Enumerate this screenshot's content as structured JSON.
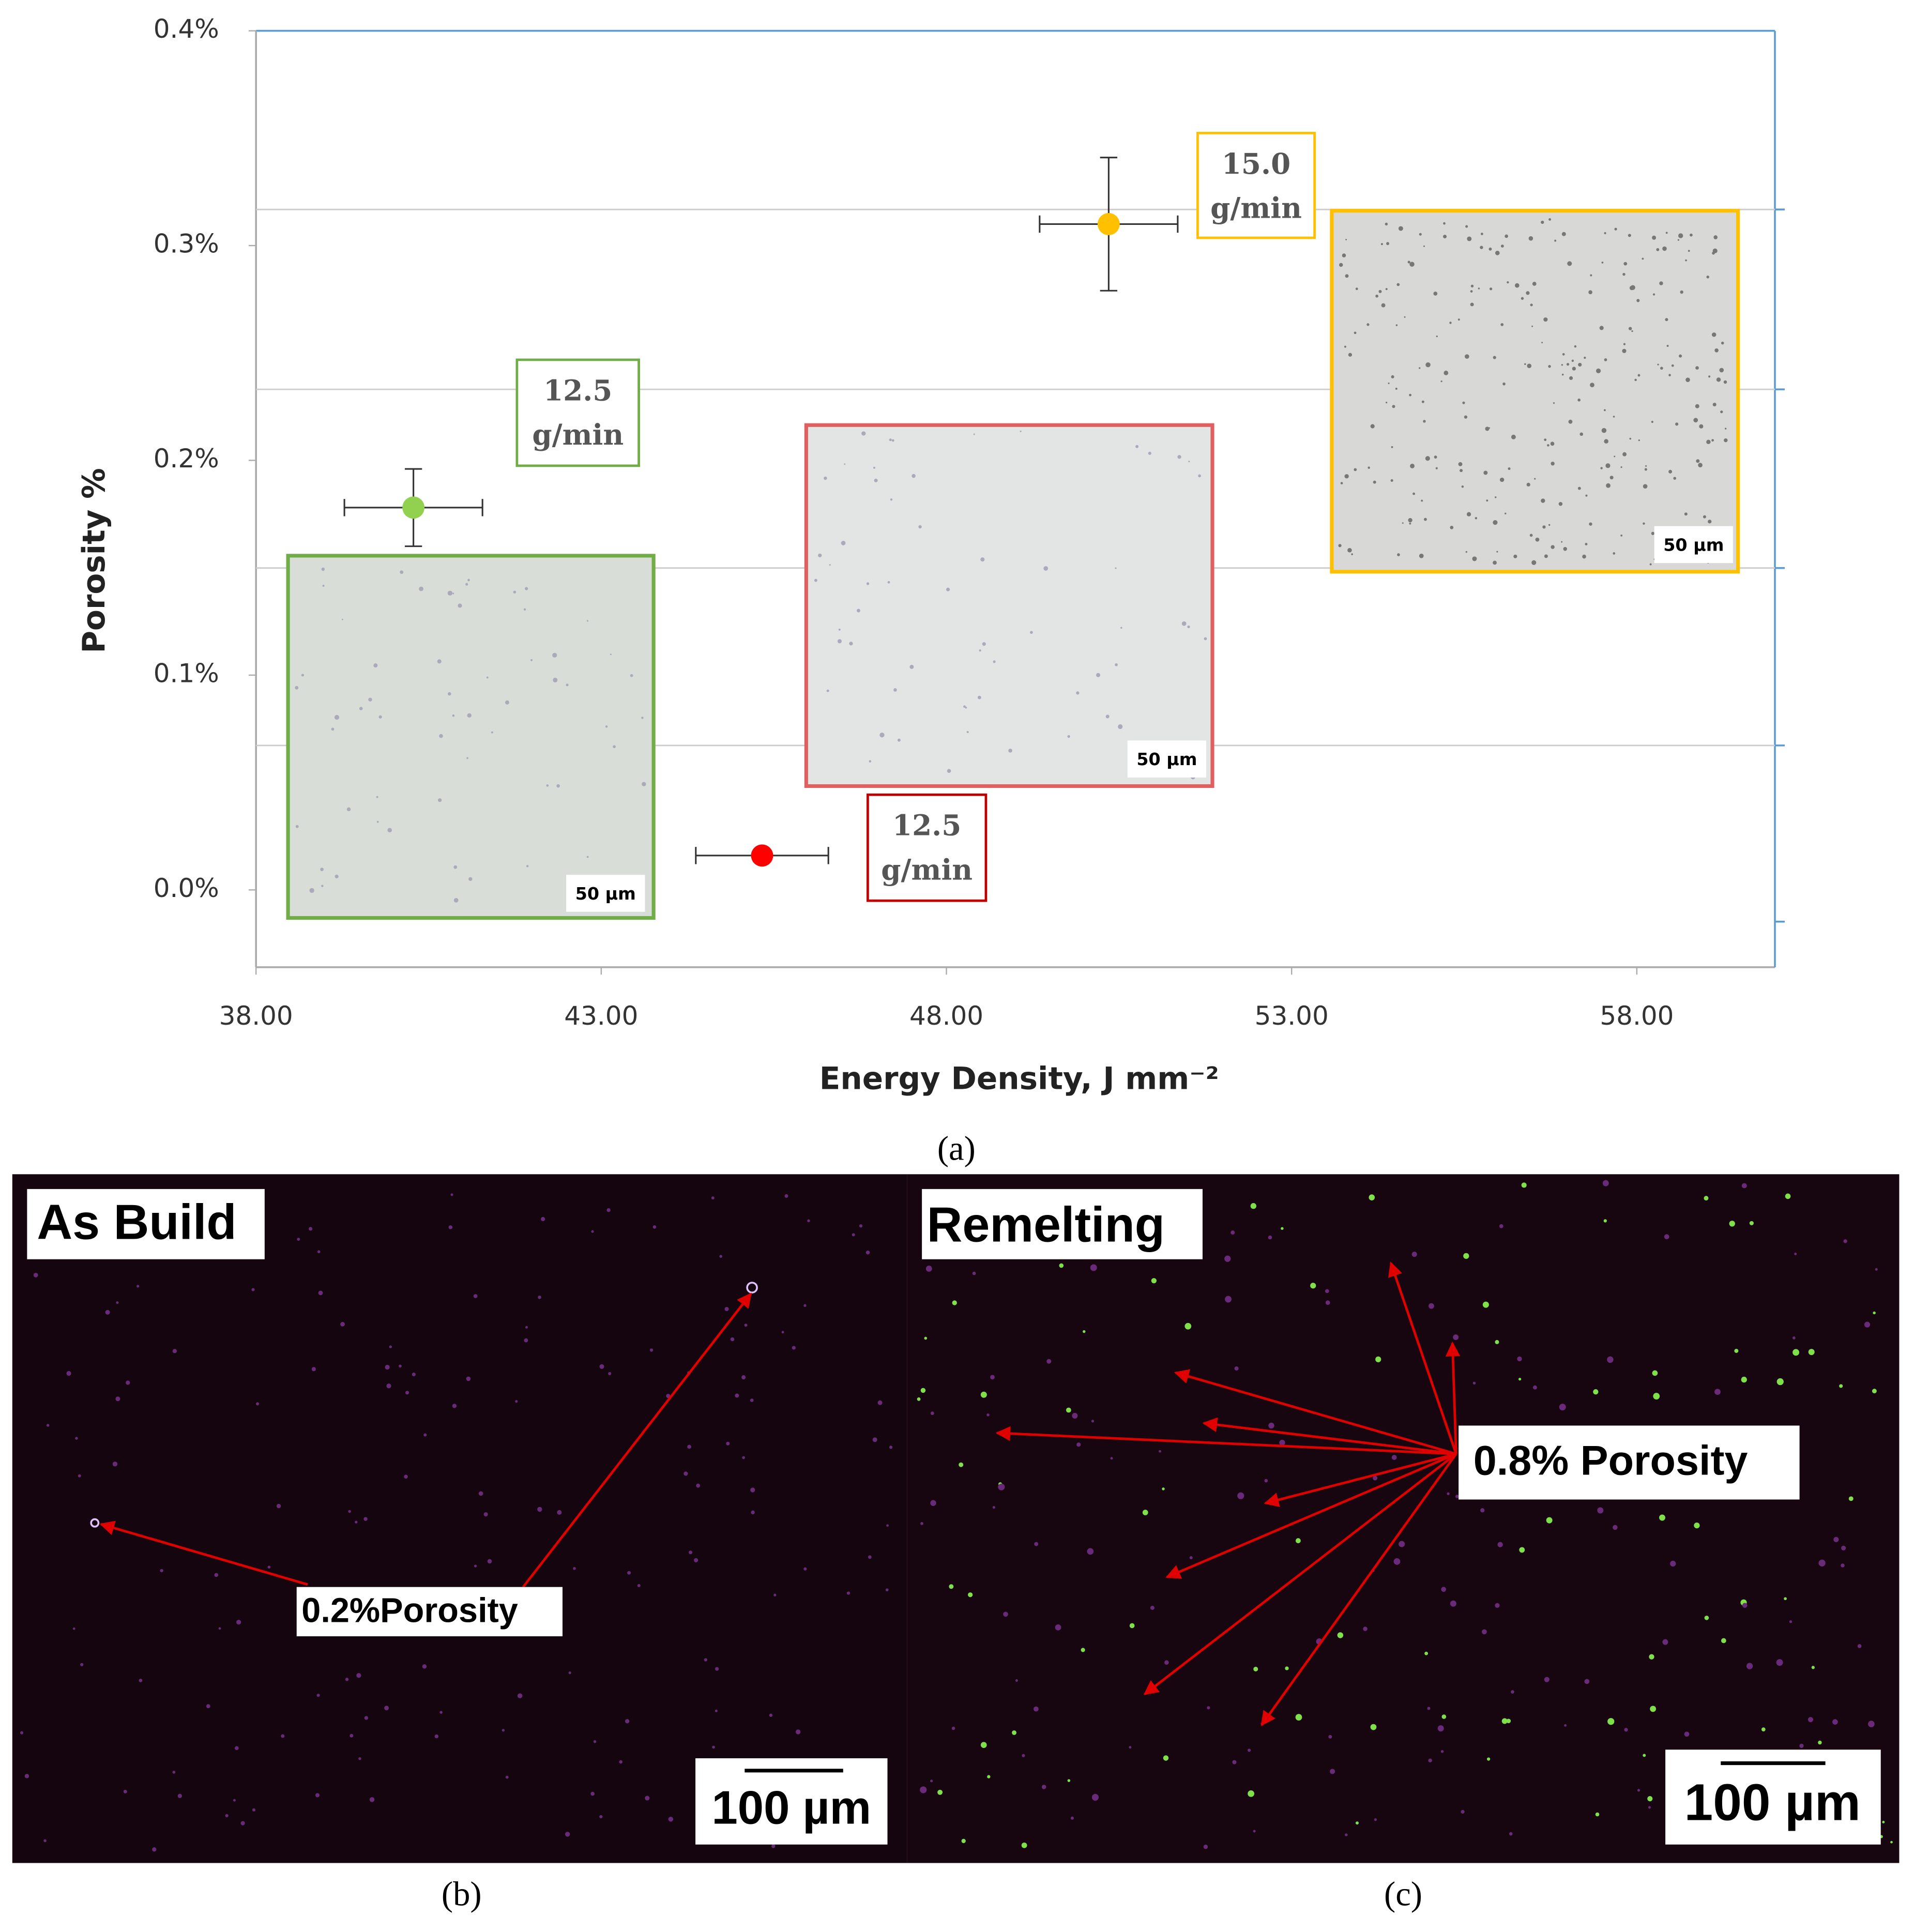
{
  "chart_data": {
    "type": "scatter",
    "xlabel": "Energy Density, J mm⁻²",
    "ylabel": "Porosity %",
    "xlim": [
      38,
      60
    ],
    "ylim": [
      -0.036,
      0.4
    ],
    "xticks": [
      {
        "value": 38,
        "label": "38.00"
      },
      {
        "value": 43,
        "label": "43.00"
      },
      {
        "value": 48,
        "label": "48.00"
      },
      {
        "value": 53,
        "label": "53.00"
      },
      {
        "value": 58,
        "label": "58.00"
      }
    ],
    "yticks": [
      {
        "value": 0,
        "label": "0.0%"
      },
      {
        "value": 0.1,
        "label": "0.1%"
      },
      {
        "value": 0.2,
        "label": "0.2%"
      },
      {
        "value": 0.3,
        "label": "0.3%"
      },
      {
        "value": 0.4,
        "label": "0.4%"
      }
    ],
    "series": [
      {
        "color": "#92d050",
        "x": [
          40.28
        ],
        "values": [
          0.178
        ],
        "x_err": [
          1.0
        ],
        "y_err": [
          0.018
        ]
      },
      {
        "color": "#ff0000",
        "x": [
          45.33
        ],
        "values": [
          0.016
        ],
        "x_err": [
          0.96
        ],
        "y_err": [
          null
        ]
      },
      {
        "color": "#ffc000",
        "x": [
          50.35
        ],
        "values": [
          0.31
        ],
        "x_err": [
          1.0
        ],
        "y_err": [
          0.031
        ]
      }
    ],
    "annotations": [
      {
        "lines": [
          "12.5",
          "g/min"
        ],
        "color": "#70ad47"
      },
      {
        "lines": [
          "12.5",
          "g/min"
        ],
        "color": "#c00000"
      },
      {
        "lines": [
          "15.0",
          "g/min"
        ],
        "color": "#ffc000"
      }
    ],
    "insets": [
      {
        "scale_label": "50 µm",
        "color": "#70ad47"
      },
      {
        "scale_label": "50 µm",
        "color": "#e06060"
      },
      {
        "scale_label": "50 µm",
        "color": "#ffc000"
      }
    ]
  },
  "panels": [
    {
      "caption": "(a)"
    },
    {
      "caption": "(b)",
      "label": "As Build",
      "annotation": "0.2%Porosity",
      "scale_bar": "100 µm"
    },
    {
      "caption": "(c)",
      "label": "Remelting",
      "annotation": "0.8% Porosity",
      "scale_bar": "100 µm"
    }
  ]
}
